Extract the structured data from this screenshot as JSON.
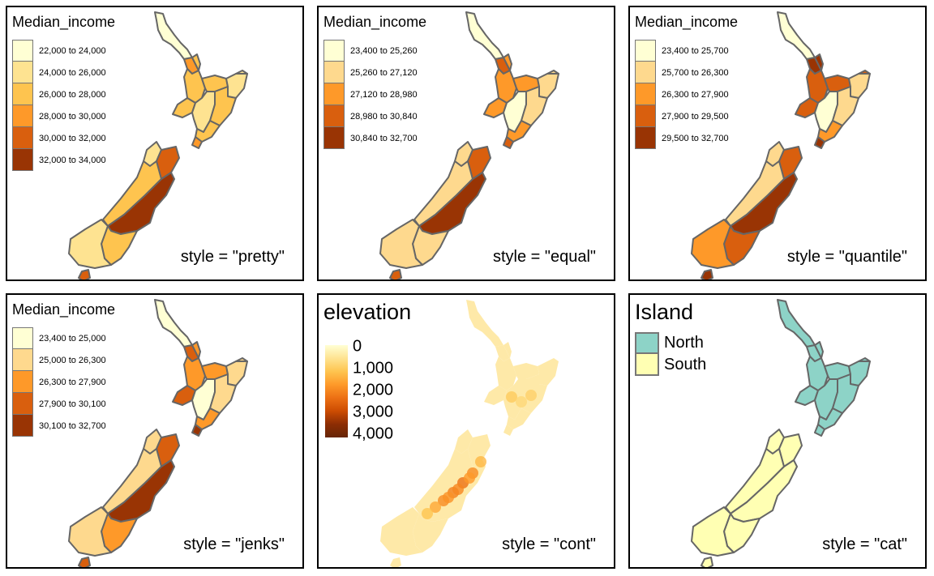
{
  "colors": {
    "income": [
      "#ffffd4",
      "#fee391",
      "#fec44f",
      "#fe9929",
      "#d95f0e",
      "#993404"
    ],
    "income5": [
      "#ffffd4",
      "#fed98e",
      "#fe9929",
      "#d95f0e",
      "#993404"
    ],
    "north": "#8dd3c7",
    "south": "#ffffb3",
    "border": "#666666"
  },
  "panels": [
    {
      "legend_title": "Median_income",
      "style_label": "style = \"pretty\"",
      "classes": [
        "22,000 to 24,000",
        "24,000 to 26,000",
        "26,000 to 28,000",
        "28,000 to 30,000",
        "30,000 to 32,000",
        "32,000 to 34,000"
      ],
      "class_colors": [
        "#ffffd4",
        "#fee391",
        "#fec44f",
        "#fe9929",
        "#d95f0e",
        "#993404"
      ],
      "region_classes": [
        0,
        3,
        2,
        2,
        1,
        2,
        1,
        2,
        2,
        1,
        4,
        2,
        5,
        2,
        1,
        4,
        1,
        2,
        3
      ]
    },
    {
      "legend_title": "Median_income",
      "style_label": "style = \"equal\"",
      "classes": [
        "23,400 to 25,260",
        "25,260 to 27,120",
        "27,120 to 28,980",
        "28,980 to 30,840",
        "30,840 to 32,700"
      ],
      "class_colors": [
        "#ffffd4",
        "#fed98e",
        "#fe9929",
        "#d95f0e",
        "#993404"
      ],
      "region_classes": [
        0,
        3,
        2,
        2,
        1,
        2,
        0,
        1,
        2,
        1,
        3,
        1,
        4,
        1,
        1,
        3,
        1,
        2,
        3
      ]
    },
    {
      "legend_title": "Median_income",
      "style_label": "style = \"quantile\"",
      "classes": [
        "23,400 to 25,700",
        "25,700 to 26,300",
        "26,300 to 27,900",
        "27,900 to 29,500",
        "29,500 to 32,700"
      ],
      "class_colors": [
        "#ffffd4",
        "#fed98e",
        "#fe9929",
        "#d95f0e",
        "#993404"
      ],
      "region_classes": [
        0,
        4,
        3,
        3,
        1,
        3,
        0,
        1,
        2,
        1,
        3,
        1,
        4,
        3,
        2,
        4,
        3,
        4,
        4
      ]
    },
    {
      "legend_title": "Median_income",
      "style_label": "style = \"jenks\"",
      "classes": [
        "23,400 to 25,000",
        "25,000 to 26,300",
        "26,300 to 27,900",
        "27,900 to 30,100",
        "30,100 to 32,700"
      ],
      "class_colors": [
        "#ffffd4",
        "#fed98e",
        "#fe9929",
        "#d95f0e",
        "#993404"
      ],
      "region_classes": [
        0,
        3,
        2,
        2,
        1,
        3,
        0,
        1,
        2,
        1,
        3,
        1,
        4,
        2,
        1,
        3,
        1,
        2,
        4
      ]
    },
    {
      "legend_title": "elevation",
      "style_label": "style = \"cont\"",
      "cont_ticks": [
        "0",
        "1,000",
        "2,000",
        "3,000",
        "4,000"
      ],
      "cont_values": [
        0,
        1000,
        2000,
        3000,
        4000
      ]
    },
    {
      "legend_title": "Island",
      "style_label": "style = \"cat\"",
      "categories": [
        "North",
        "South"
      ],
      "category_colors": [
        "#8dd3c7",
        "#ffffb3"
      ]
    }
  ]
}
